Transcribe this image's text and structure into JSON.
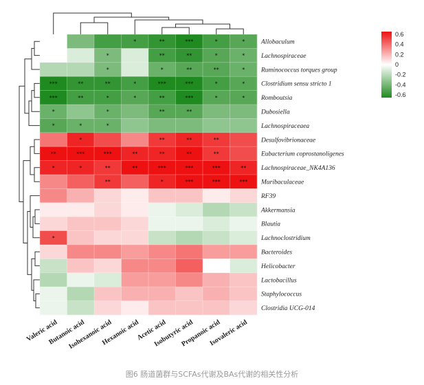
{
  "caption": "图6 肠道菌群与SCFAs代谢及BAs代谢的相关性分析",
  "chart_data": {
    "type": "heatmap",
    "title": "",
    "columns": [
      "Valeric acid",
      "Butanoic acid",
      "Isohexanoic acid",
      "Hexanoic acid",
      "Acetic acid",
      "Isobutyric acid",
      "Propanoic acid",
      "Isovaleric acid"
    ],
    "rows": [
      "Allobaculum",
      "Lachnospiraceae",
      "Ruminococcus torques group",
      "Clostridium sensu stricto 1",
      "Romboutsia",
      "Dubosiella",
      "Lachnospiraceaea",
      "Desulfovibrionaceae",
      "Eubacterium coprostanoligenes",
      "Lachnospiraceae_NK4A136",
      "Muribaculaceae",
      "RF39",
      "Akkermansia",
      "Blautia",
      "Lachnoclostridium",
      "Bacteroides",
      "Helicobacter",
      "Lactobacillus",
      "Staphylococcus",
      "Clostridia UCG-014"
    ],
    "values": [
      [
        0.0,
        -0.35,
        -0.5,
        -0.5,
        -0.55,
        -0.65,
        -0.5,
        -0.45
      ],
      [
        0.0,
        -0.1,
        -0.35,
        -0.1,
        -0.5,
        -0.55,
        -0.45,
        -0.4
      ],
      [
        -0.2,
        -0.2,
        -0.35,
        -0.1,
        -0.4,
        -0.45,
        -0.45,
        -0.4
      ],
      [
        -0.6,
        -0.55,
        -0.55,
        -0.5,
        -0.6,
        -0.6,
        -0.5,
        -0.45
      ],
      [
        -0.6,
        -0.5,
        -0.5,
        -0.45,
        -0.5,
        -0.6,
        -0.45,
        -0.45
      ],
      [
        -0.4,
        -0.3,
        -0.4,
        -0.35,
        -0.45,
        -0.45,
        -0.35,
        -0.35
      ],
      [
        -0.45,
        -0.4,
        -0.4,
        -0.3,
        -0.35,
        -0.35,
        -0.3,
        -0.3
      ],
      [
        0.35,
        0.55,
        0.45,
        0.3,
        0.5,
        0.55,
        0.5,
        0.45
      ],
      [
        0.6,
        0.65,
        0.65,
        0.55,
        0.55,
        0.65,
        0.5,
        0.45
      ],
      [
        0.55,
        0.55,
        0.5,
        0.6,
        0.65,
        0.7,
        0.6,
        0.55
      ],
      [
        0.3,
        0.4,
        0.5,
        0.4,
        0.55,
        0.6,
        0.6,
        0.6
      ],
      [
        0.3,
        0.2,
        0.1,
        0.05,
        0.15,
        0.15,
        0.05,
        0.1
      ],
      [
        0.05,
        0.05,
        0.1,
        0.05,
        -0.05,
        -0.1,
        -0.2,
        -0.15
      ],
      [
        0.1,
        0.15,
        0.15,
        0.1,
        -0.05,
        -0.05,
        -0.1,
        -0.05
      ],
      [
        0.45,
        0.15,
        0.1,
        0.1,
        -0.15,
        -0.2,
        -0.15,
        -0.1
      ],
      [
        0.1,
        0.3,
        0.3,
        0.25,
        0.3,
        0.35,
        0.25,
        0.25
      ],
      [
        -0.15,
        0.15,
        0.1,
        0.3,
        0.3,
        0.4,
        0.0,
        -0.1
      ],
      [
        -0.2,
        -0.05,
        -0.1,
        0.25,
        0.25,
        0.3,
        0.2,
        0.15
      ],
      [
        -0.05,
        -0.2,
        0.15,
        0.2,
        0.2,
        0.15,
        0.2,
        0.15
      ],
      [
        -0.05,
        -0.15,
        0.1,
        0.05,
        0.15,
        0.15,
        0.15,
        0.1
      ]
    ],
    "significance": [
      [
        "",
        "",
        "",
        "*",
        "**",
        "***",
        "*",
        "*"
      ],
      [
        "",
        "",
        "*",
        "",
        "**",
        "**",
        "*",
        "*"
      ],
      [
        "",
        "",
        "*",
        "",
        "*",
        "**",
        "**",
        "*"
      ],
      [
        "***",
        "**",
        "**",
        "*",
        "***",
        "***",
        "*",
        "*"
      ],
      [
        "***",
        "**",
        "*",
        "*",
        "**",
        "***",
        "*",
        "*"
      ],
      [
        "*",
        "",
        "*",
        "",
        "**",
        "**",
        "",
        ""
      ],
      [
        "*",
        "*",
        "*",
        "",
        "",
        "",
        "",
        ""
      ],
      [
        "",
        "*",
        "",
        "",
        "**",
        "**",
        "**",
        ""
      ],
      [
        "**",
        "***",
        "***",
        "**",
        "**",
        "**",
        "**",
        ""
      ],
      [
        "*",
        "*",
        "**",
        "**",
        "***",
        "***",
        "***",
        "**"
      ],
      [
        "",
        "",
        "**",
        "",
        "*",
        "***",
        "***",
        "***"
      ],
      [
        "",
        "",
        "",
        "",
        "",
        "",
        "",
        ""
      ],
      [
        "",
        "",
        "",
        "",
        "",
        "",
        "",
        ""
      ],
      [
        "",
        "",
        "",
        "",
        "",
        "",
        "",
        ""
      ],
      [
        "*",
        "",
        "",
        "",
        "",
        "",
        "",
        ""
      ],
      [
        "",
        "",
        "",
        "",
        "",
        "",
        "",
        ""
      ],
      [
        "",
        "",
        "",
        "",
        "",
        "",
        "",
        ""
      ],
      [
        "",
        "",
        "",
        "",
        "",
        "",
        "",
        ""
      ],
      [
        "",
        "",
        "",
        "",
        "",
        "",
        "",
        ""
      ],
      [
        "",
        "",
        "",
        "",
        "",
        "",
        "",
        ""
      ]
    ],
    "color_scale": {
      "range": [
        -0.6,
        0.6
      ],
      "ticks": [
        "0.6",
        "0.4",
        "0.2",
        "0",
        "-0.2",
        "-0.4",
        "-0.6"
      ],
      "low_color": "#1f8a1f",
      "mid_color": "#ffffff",
      "high_color": "#ee1111"
    },
    "legend_position": "top-right",
    "dendrograms": {
      "rows": true,
      "columns": true
    }
  }
}
